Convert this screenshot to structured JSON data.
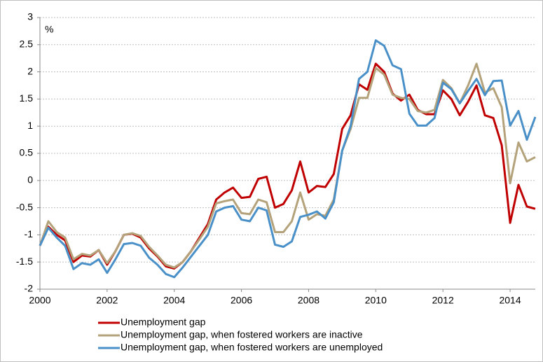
{
  "chart_data": {
    "type": "line",
    "unit": "%",
    "x": [
      2000,
      2000.25,
      2000.5,
      2000.75,
      2001,
      2001.25,
      2001.5,
      2001.75,
      2002,
      2002.25,
      2002.5,
      2002.75,
      2003,
      2003.25,
      2003.5,
      2003.75,
      2004,
      2004.25,
      2004.5,
      2004.75,
      2005,
      2005.25,
      2005.5,
      2005.75,
      2006,
      2006.25,
      2006.5,
      2006.75,
      2007,
      2007.25,
      2007.5,
      2007.75,
      2008,
      2008.25,
      2008.5,
      2008.75,
      2009,
      2009.25,
      2009.5,
      2009.75,
      2010,
      2010.25,
      2010.5,
      2010.75,
      2011,
      2011.25,
      2011.5,
      2011.75,
      2012,
      2012.25,
      2012.5,
      2012.75,
      2013,
      2013.25,
      2013.5,
      2013.75,
      2014,
      2014.25,
      2014.5,
      2014.75
    ],
    "series": [
      {
        "name": "Unemployment gap",
        "color": "#c00000",
        "values": [
          -1.2,
          -0.85,
          -1.0,
          -1.1,
          -1.5,
          -1.38,
          -1.4,
          -1.28,
          -1.55,
          -1.3,
          -1.0,
          -0.98,
          -1.05,
          -1.25,
          -1.4,
          -1.58,
          -1.62,
          -1.5,
          -1.3,
          -1.05,
          -0.8,
          -0.35,
          -0.22,
          -0.13,
          -0.32,
          -0.3,
          0.03,
          0.07,
          -0.5,
          -0.43,
          -0.18,
          0.35,
          -0.22,
          -0.1,
          -0.12,
          0.12,
          0.95,
          1.2,
          1.77,
          1.67,
          2.15,
          2.0,
          1.6,
          1.47,
          1.58,
          1.3,
          1.22,
          1.22,
          1.66,
          1.5,
          1.2,
          1.45,
          1.75,
          1.2,
          1.15,
          0.65,
          -0.78,
          -0.08,
          -0.48,
          -0.52
        ]
      },
      {
        "name": "Unemployment gap, when fostered workers are inactive",
        "color": "#b3a27a",
        "values": [
          -1.2,
          -0.75,
          -0.95,
          -1.05,
          -1.45,
          -1.35,
          -1.38,
          -1.28,
          -1.52,
          -1.3,
          -1.0,
          -0.97,
          -1.02,
          -1.22,
          -1.38,
          -1.55,
          -1.6,
          -1.5,
          -1.3,
          -1.08,
          -0.85,
          -0.42,
          -0.38,
          -0.35,
          -0.6,
          -0.62,
          -0.35,
          -0.4,
          -0.95,
          -0.95,
          -0.75,
          -0.22,
          -0.72,
          -0.62,
          -0.65,
          -0.35,
          0.55,
          0.95,
          1.52,
          1.52,
          2.07,
          1.95,
          1.58,
          1.52,
          1.5,
          1.28,
          1.25,
          1.3,
          1.85,
          1.7,
          1.42,
          1.75,
          2.15,
          1.62,
          1.7,
          1.35,
          -0.05,
          0.7,
          0.35,
          0.43
        ]
      },
      {
        "name": "Unemployment gap, when fostered workers are unemployed",
        "color": "#4a90c8",
        "values": [
          -1.2,
          -0.87,
          -1.05,
          -1.2,
          -1.63,
          -1.52,
          -1.55,
          -1.45,
          -1.7,
          -1.45,
          -1.17,
          -1.15,
          -1.2,
          -1.42,
          -1.55,
          -1.72,
          -1.78,
          -1.6,
          -1.4,
          -1.2,
          -1.0,
          -0.57,
          -0.5,
          -0.47,
          -0.72,
          -0.75,
          -0.5,
          -0.55,
          -1.18,
          -1.22,
          -1.12,
          -0.67,
          -0.63,
          -0.57,
          -0.7,
          -0.4,
          0.55,
          1.0,
          1.87,
          2.0,
          2.58,
          2.48,
          2.12,
          2.05,
          1.23,
          1.01,
          1.01,
          1.15,
          1.8,
          1.68,
          1.42,
          1.65,
          1.87,
          1.57,
          1.83,
          1.84,
          1.01,
          1.28,
          0.75,
          1.17
        ]
      }
    ],
    "xlim": [
      2000,
      2014.75
    ],
    "xticks": [
      2000,
      2002,
      2004,
      2006,
      2008,
      2010,
      2012,
      2014
    ],
    "ylim": [
      -2,
      3
    ],
    "yticks": [
      -2,
      -1.5,
      -1,
      -0.5,
      0,
      0.5,
      1,
      1.5,
      2,
      2.5,
      3
    ],
    "grid": true
  }
}
